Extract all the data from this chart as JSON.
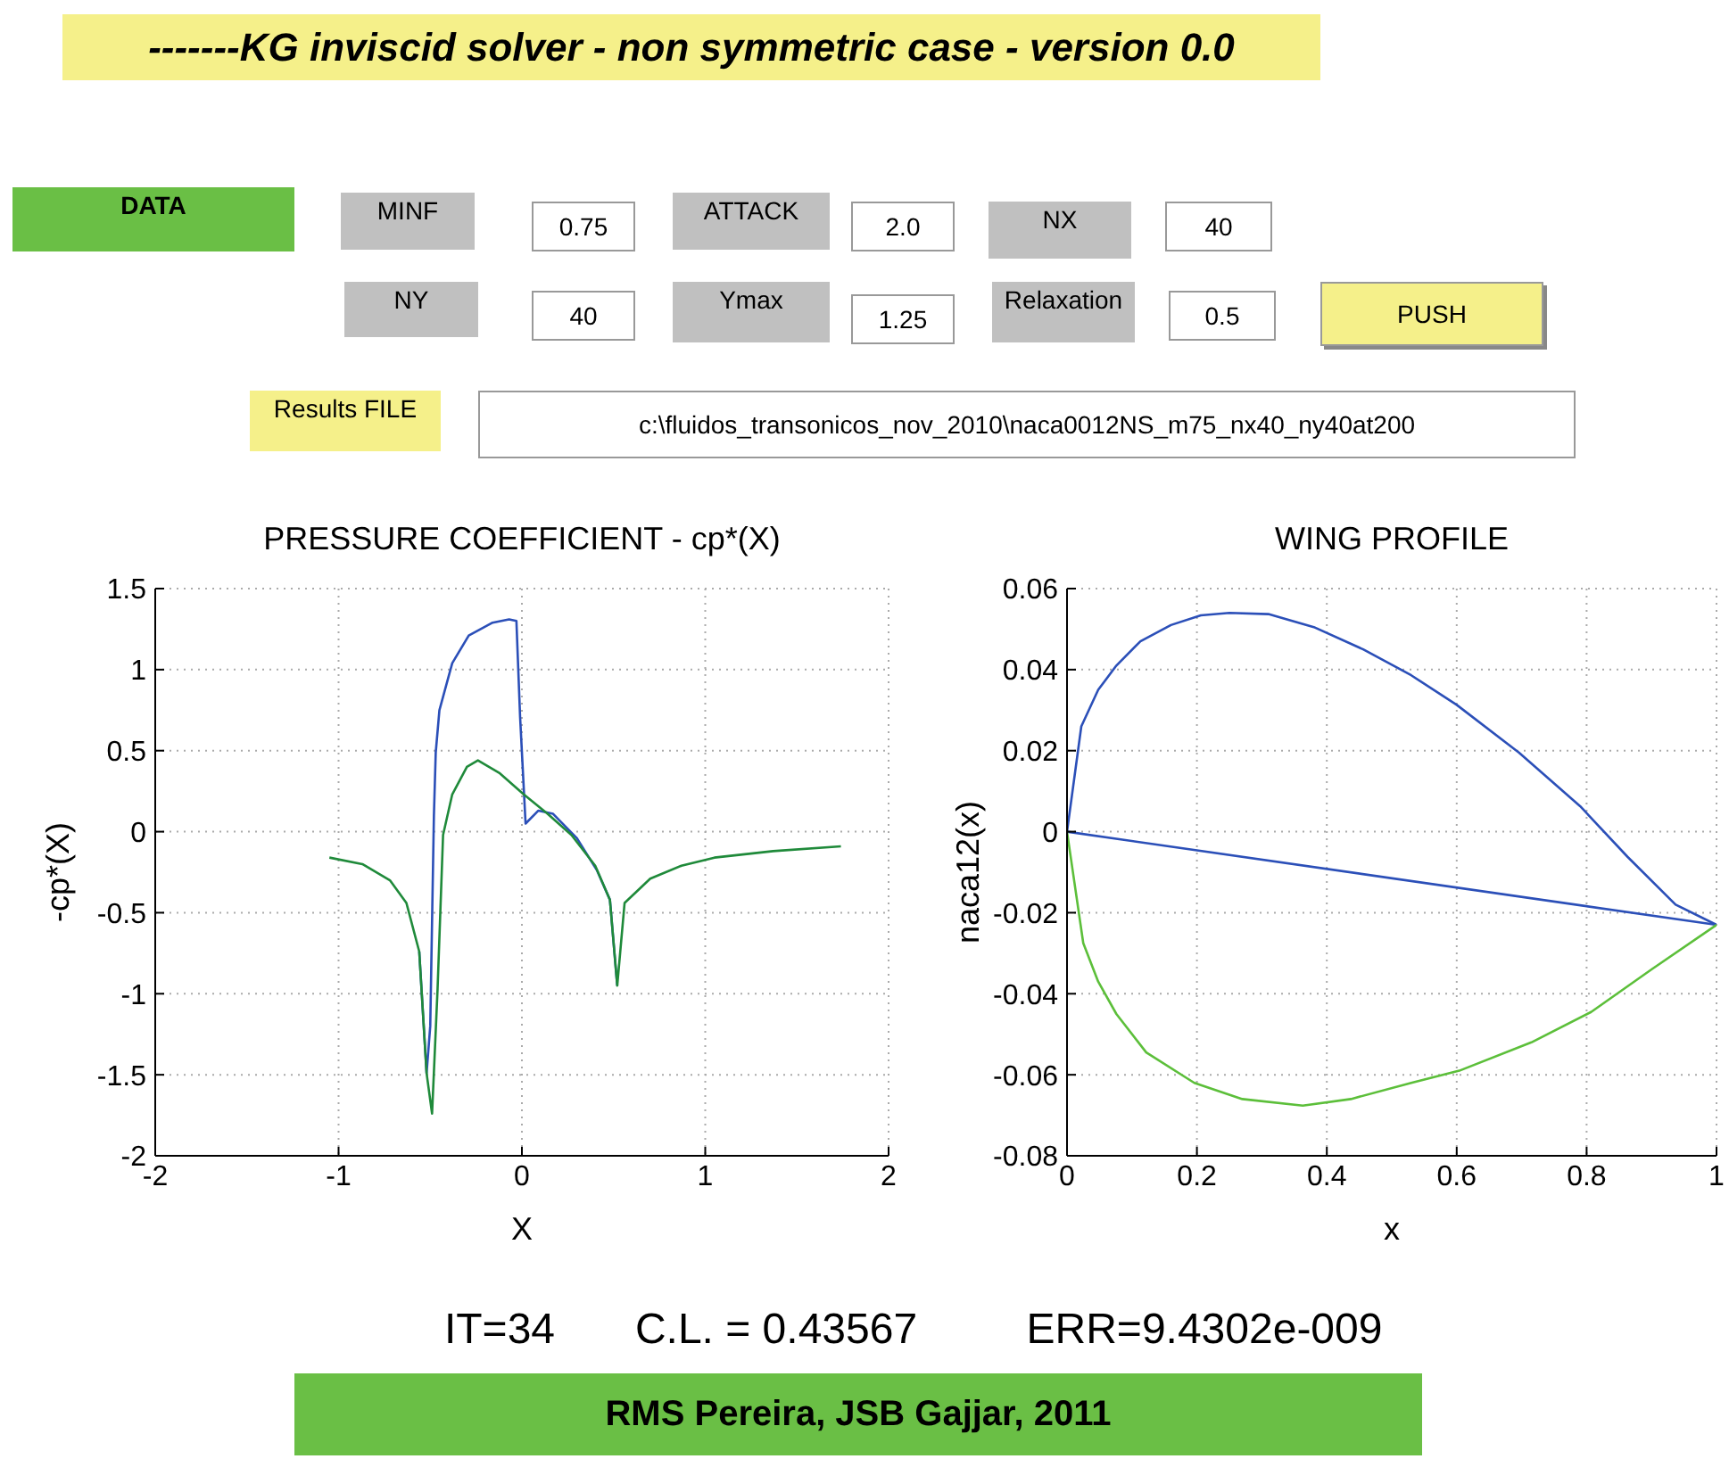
{
  "chart_data": [
    {
      "type": "other",
      "title": "-------KG inviscid solver - non symmetric case - version 0.0",
      "annotations": [
        "DATA",
        "MINF",
        "0.75",
        "ATTACK",
        "2.0",
        "NX",
        "40",
        "NY",
        "40",
        "Ymax",
        "1.25",
        "Relaxation",
        "0.5",
        "PUSH",
        "Results FILE",
        "c:\\fluidos_transonicos_nov_2010\\naca0012NS_m75_nx40_ny40at200"
      ]
    },
    {
      "type": "line",
      "title": "PRESSURE COEFFICIENT - cp*(X)",
      "xlabel": "X",
      "ylabel": "-cp*(X)",
      "xlim": [
        -2,
        2
      ],
      "xticks": [
        -2,
        -1,
        0,
        1,
        2
      ],
      "ylim": [
        -2,
        1.5
      ],
      "yticks": [
        -2,
        -1.5,
        -1,
        -0.5,
        0,
        0.5,
        1,
        1.5
      ],
      "grid": true,
      "series": [
        {
          "color": "#2b4fb8",
          "x": [
            -0.56,
            -0.52,
            -0.5,
            -0.48,
            -0.47,
            -0.45,
            -0.38,
            -0.29,
            -0.16,
            -0.07,
            -0.03,
            -0.01,
            0.02,
            0.09,
            0.17,
            0.3,
            0.41,
            0.48,
            0.52
          ],
          "values": [
            -0.74,
            -1.49,
            -1.2,
            0.1,
            0.49,
            0.75,
            1.04,
            1.21,
            1.29,
            1.31,
            1.3,
            0.71,
            0.05,
            0.13,
            0.11,
            -0.04,
            -0.24,
            -0.42,
            -0.95
          ]
        },
        {
          "color": "#1f8a3a",
          "x": [
            -1.05,
            -0.87,
            -0.72,
            -0.63,
            -0.56,
            -0.52,
            -0.49,
            -0.46,
            -0.43,
            -0.38,
            -0.3,
            -0.24,
            -0.12,
            0.01,
            0.14,
            0.27,
            0.4,
            0.48,
            0.52,
            0.56,
            0.7,
            0.87,
            1.05,
            1.37,
            1.74
          ],
          "values": [
            -0.16,
            -0.2,
            -0.3,
            -0.44,
            -0.74,
            -1.49,
            -1.74,
            -0.97,
            -0.02,
            0.23,
            0.4,
            0.44,
            0.36,
            0.23,
            0.11,
            -0.02,
            -0.21,
            -0.42,
            -0.95,
            -0.44,
            -0.29,
            -0.21,
            -0.16,
            -0.12,
            -0.09
          ]
        }
      ]
    },
    {
      "type": "line",
      "title": "WING PROFILE",
      "xlabel": "x",
      "ylabel": "naca12(x)",
      "xlim": [
        0,
        1
      ],
      "xticks": [
        0,
        0.2,
        0.4,
        0.6,
        0.8,
        1
      ],
      "ylim": [
        -0.08,
        0.06
      ],
      "yticks": [
        -0.08,
        -0.06,
        -0.04,
        -0.02,
        0,
        0.02,
        0.04,
        0.06
      ],
      "grid": true,
      "series": [
        {
          "color": "#2b4fb8",
          "x": [
            0,
            0.022,
            0.048,
            0.076,
            0.113,
            0.16,
            0.206,
            0.25,
            0.31,
            0.38,
            0.456,
            0.53,
            0.6,
            0.696,
            0.79,
            0.863,
            0.937,
            1
          ],
          "values": [
            0,
            0.026,
            0.035,
            0.041,
            0.047,
            0.051,
            0.0534,
            0.054,
            0.0537,
            0.0505,
            0.045,
            0.0386,
            0.0313,
            0.0195,
            0.0063,
            -0.0062,
            -0.018,
            -0.023
          ]
        },
        {
          "color": "#2b4fb8",
          "x": [
            0,
            1
          ],
          "values": [
            0,
            -0.023
          ]
        },
        {
          "color": "#5cbf3a",
          "x": [
            0,
            0.025,
            0.048,
            0.076,
            0.122,
            0.196,
            0.27,
            0.363,
            0.437,
            0.53,
            0.604,
            0.715,
            0.807,
            0.9,
            1
          ],
          "values": [
            0,
            -0.0275,
            -0.037,
            -0.045,
            -0.0545,
            -0.062,
            -0.066,
            -0.0676,
            -0.066,
            -0.062,
            -0.059,
            -0.052,
            -0.0445,
            -0.034,
            -0.023
          ]
        }
      ]
    },
    {
      "type": "other",
      "annotations": [
        "IT=34",
        "C.L. = 0.43567",
        "ERR=9.4302e-009",
        "RMS Pereira, JSB Gajjar, 2011"
      ]
    }
  ]
}
